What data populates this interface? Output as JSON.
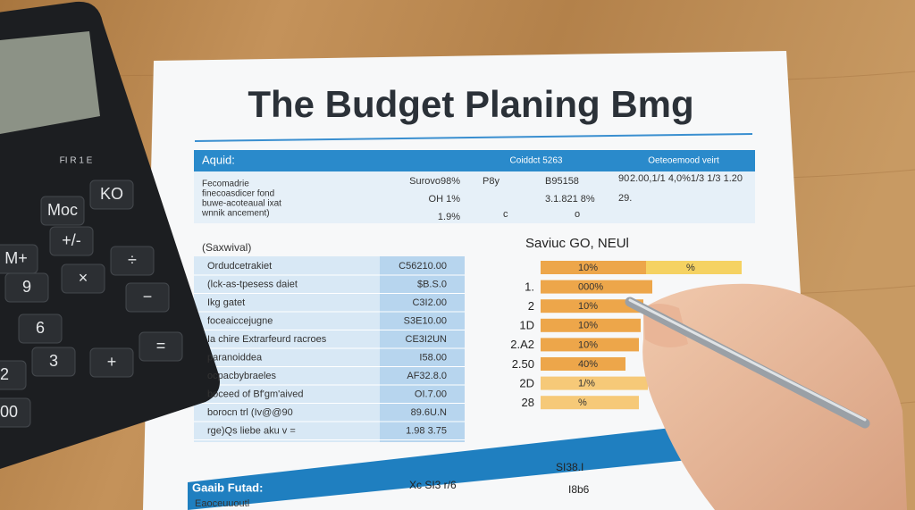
{
  "document": {
    "title": "The Budget Planing Bmg",
    "top_table": {
      "header": [
        "Aquid:",
        "Coiddct 5263",
        "Oeteoemood veirt"
      ],
      "labels": [
        "Fecomadrie",
        "finecoasdicer fond",
        "buwe-acoteaual ixat",
        "wnnik ancement)"
      ],
      "amounts": [
        "Surovo98%",
        "OH 1%",
        "1.9%"
      ],
      "middle": [
        "P8y",
        "B95158",
        "3.1.821 8%",
        "c",
        "o"
      ],
      "right": [
        "90",
        "2.00,1/1 4,0%1/3 1/3 1.20",
        "29."
      ]
    },
    "expense_table": {
      "section": "(Saxwival)",
      "labels": [
        "Ordudcetrakiet",
        "(lck-as-tpesess daiet",
        "Ikg gatet",
        "foceaiccejugne",
        "Ia chire Extrarfeurd racroes",
        "paranoiddea",
        "ocpacbybraeles",
        "boceed of Bf'gm'aived",
        "borocn trl (Iv@@90",
        "rge)Qs liebe aku v ="
      ],
      "values": [
        "C56210.00",
        "$B.S.0",
        "C3I2.00",
        "S3E10.00",
        "CE3I2UN",
        "I58.00",
        "AF32.8.0",
        "OI.7.00",
        "89.6U.N",
        "1.98 3.75"
      ]
    },
    "savings_chart": {
      "title": "Saviuc GO, NEUl",
      "row_labels": [
        "1.",
        "2",
        "1D",
        "2.A2",
        "2.50",
        "2D",
        "28"
      ],
      "bar_labels": [
        "10%",
        "000%",
        "10%",
        "10%",
        "10%",
        "40%",
        "1/%",
        "%"
      ],
      "extra_label": "%"
    },
    "footer_table": {
      "header": "Gaaib Futad:",
      "cells": [
        "Xc SI3 r/6",
        "SI38.I",
        "I8b6"
      ],
      "label": "Eaoceuuoutl"
    },
    "calculator": {
      "brand": "FI R 1 E",
      "keys": [
        "KO",
        "Moc",
        "+/-",
        "M+",
        "÷",
        "×",
        "9",
        "6",
        "3",
        "−",
        "+",
        "=",
        "00",
        "2"
      ]
    }
  }
}
